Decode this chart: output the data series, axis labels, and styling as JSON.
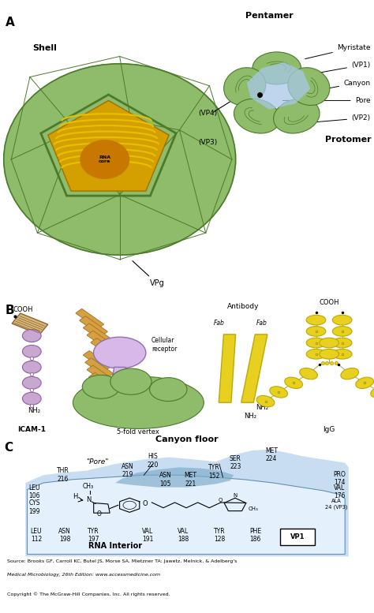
{
  "bg_color": "#ffffff",
  "colors": {
    "green_shell": "#8fbc6a",
    "green_mid": "#6a9e50",
    "green_dark": "#4a7a2a",
    "yellow_rna": "#e8c000",
    "orange_core": "#c87800",
    "blue_canyon": "#a8c8e8",
    "blue_bg": "#b8d4e8",
    "purple_icam": "#c8a8d0",
    "yellow_antibody": "#e8d020",
    "yellow_ab_dark": "#c0a800",
    "orange_receptor": "#d4a040",
    "light_blue_panel": "#c0d8f0",
    "med_blue": "#7aaac8",
    "white_pocket": "#e8f4ff"
  },
  "source_text": "Source: Brooks GF, Carroll KC, Butel JS, Morse SA, Mietzner TA: Jawetz, Melnick, & Adelberg's",
  "source_text2": "Medical Microbiology, 26th Edition: www.accessmedicine.com",
  "copyright_text": "Copyright © The McGraw-Hill Companies, Inc. All rights reserved."
}
